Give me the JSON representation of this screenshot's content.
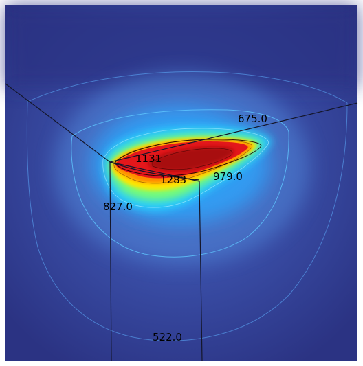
{
  "figure": {
    "type": "3d-temperature-contour-plot",
    "colormap": "rainbow",
    "background_color": "#ffffff",
    "plot_background_color": "#2b3383",
    "edge_line_color": "#1a1a2e",
    "contour_labels": [
      {
        "id": "c675",
        "text": "675.0"
      },
      {
        "id": "c1131",
        "text": "1131"
      },
      {
        "id": "c1283",
        "text": "1283"
      },
      {
        "id": "c979",
        "text": "979.0"
      },
      {
        "id": "c827",
        "text": "827.0"
      },
      {
        "id": "c522",
        "text": "522.0"
      }
    ],
    "contour_levels": [
      522.0,
      675.0,
      827.0,
      979.0,
      1131,
      1283
    ]
  }
}
